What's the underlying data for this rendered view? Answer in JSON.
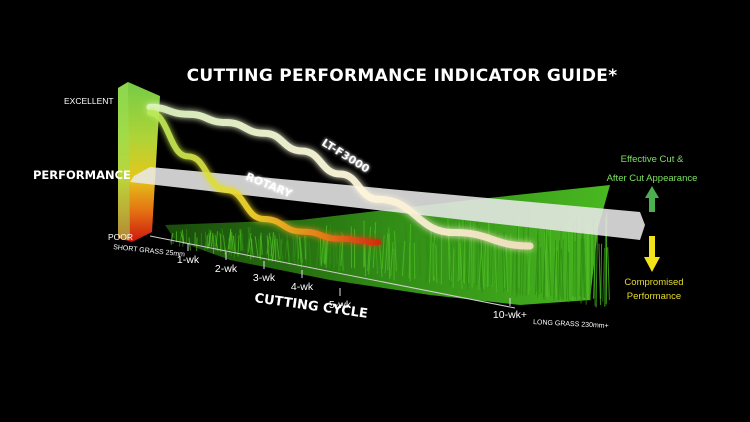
{
  "chart_data": {
    "type": "line",
    "title": "CUTTING PERFORMANCE INDICATOR GUIDE*",
    "xlabel": "CUTTING CYCLE",
    "ylabel": "PERFORMANCE",
    "y_top_label": "EXCELLENT",
    "y_bottom_label": "POOR",
    "x_start_label": "SHORT GRASS 25mm",
    "x_end_label": "LONG GRASS 230mm+",
    "x_ticks": [
      "1-wk",
      "2-wk",
      "3-wk",
      "4-wk",
      "5-wk",
      "10-wk+"
    ],
    "x_tick_values": [
      1,
      2,
      3,
      4,
      5,
      10
    ],
    "ylim": [
      0,
      100
    ],
    "threshold": 48,
    "series": [
      {
        "name": "LT-F3000",
        "x": [
          0,
          1,
          2,
          3,
          4,
          5,
          6,
          8,
          10
        ],
        "y": [
          92,
          91,
          89,
          85,
          75,
          60,
          42,
          18,
          10
        ]
      },
      {
        "name": "ROTARY",
        "x": [
          0,
          1,
          2,
          3,
          4,
          5,
          6
        ],
        "y": [
          88,
          60,
          38,
          18,
          10,
          6,
          5
        ]
      }
    ],
    "legend": {
      "up": "Effective Cut & After Cut Appearance",
      "down": "Compromised Performance"
    },
    "colors": {
      "lt_line": "#f4f1d0",
      "rotary_line": "#e8d23c",
      "grass": "#3aa51a",
      "threshold_band": "#e6e6e6",
      "up_arrow": "#4caf50",
      "down_arrow": "#f2e21a"
    }
  }
}
